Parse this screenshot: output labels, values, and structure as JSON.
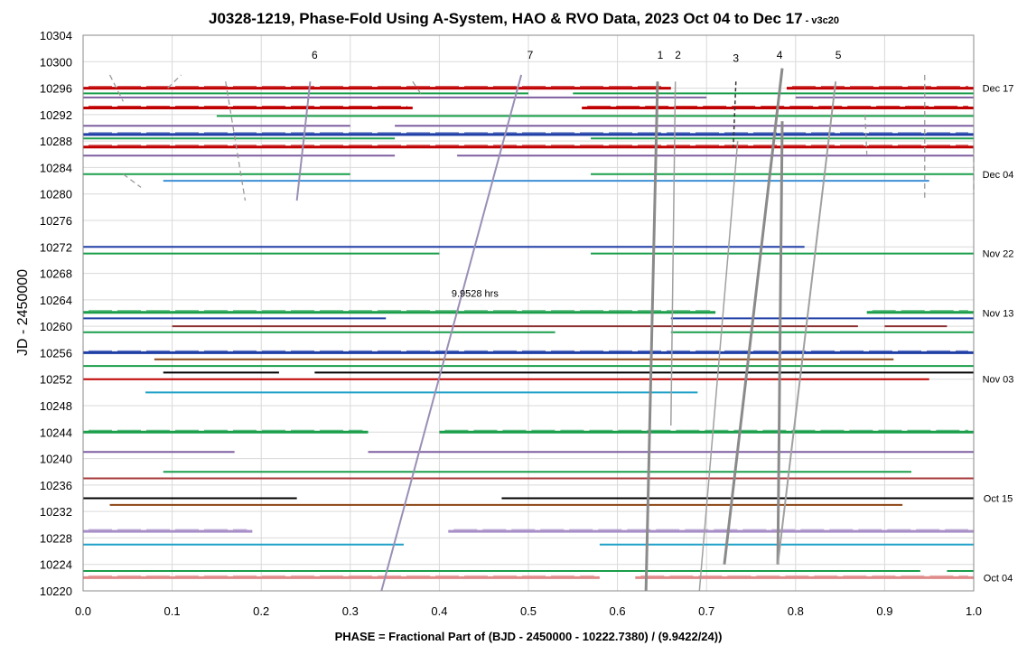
{
  "chart_data": {
    "type": "scatter",
    "title": "J0328-1219, Phase-Fold Using A-System, HAO & RVO Data, 2023 Oct 04 to Dec 17",
    "subtitle": " - v3c20",
    "xlabel": "PHASE = Fractional Part of (BJD - 2450000 - 10222.7380) / (9.9422/24))",
    "ylabel": "JD - 2450000",
    "xlim": [
      0,
      1
    ],
    "ylim": [
      10220,
      10304
    ],
    "xticks": [
      "0.0",
      "0.1",
      "0.2",
      "0.3",
      "0.4",
      "0.5",
      "0.6",
      "0.7",
      "0.8",
      "0.9",
      "1.0"
    ],
    "yticks": [
      "10220",
      "10224",
      "10228",
      "10232",
      "10236",
      "10240",
      "10244",
      "10248",
      "10252",
      "10256",
      "10260",
      "10264",
      "10268",
      "10272",
      "10276",
      "10280",
      "10284",
      "10288",
      "10292",
      "10296",
      "10300",
      "10304"
    ],
    "grid": true,
    "date_labels": [
      {
        "label": "Dec 17",
        "y": 10296
      },
      {
        "label": "Dec 04",
        "y": 10283
      },
      {
        "label": "Nov 22",
        "y": 10271
      },
      {
        "label": "Nov 13",
        "y": 10262
      },
      {
        "label": "Nov 03",
        "y": 10252
      },
      {
        "label": "Oct 15",
        "y": 10234
      },
      {
        "label": "Oct 04",
        "y": 10222
      }
    ],
    "period_label": {
      "text": "9.9528 hrs",
      "x": 0.44,
      "y": 10265
    },
    "drift_lines": [
      {
        "label": "1",
        "x1": 0.645,
        "y1": 10297,
        "x2": 0.632,
        "y2": 10220,
        "color": "#8a8a8a",
        "width": 3,
        "dash": false
      },
      {
        "label": "2",
        "x1": 0.665,
        "y1": 10297,
        "x2": 0.66,
        "y2": 10245,
        "color": "#a0a0a0",
        "width": 1.5,
        "dash": false
      },
      {
        "label": "3",
        "x1": 0.733,
        "y1": 10297,
        "x2": 0.73,
        "y2": 10287,
        "color": "#333333",
        "width": 1.5,
        "dash": true
      },
      {
        "label": "3b",
        "x1": 0.735,
        "y1": 10288,
        "x2": 0.692,
        "y2": 10220,
        "color": "#a0a0a0",
        "width": 1.5,
        "dash": false
      },
      {
        "label": "4",
        "x1": 0.785,
        "y1": 10299,
        "x2": 0.72,
        "y2": 10224,
        "color": "#8a8a8a",
        "width": 3,
        "dash": false
      },
      {
        "label": "4b",
        "x1": 0.785,
        "y1": 10291,
        "x2": 0.78,
        "y2": 10224,
        "color": "#8a8a8a",
        "width": 3,
        "dash": false
      },
      {
        "label": "5",
        "x1": 0.845,
        "y1": 10297,
        "x2": 0.78,
        "y2": 10224,
        "color": "#a0a0a0",
        "width": 2,
        "dash": false
      },
      {
        "label": "6",
        "x1": 0.255,
        "y1": 10297,
        "x2": 0.24,
        "y2": 10279,
        "color": "#9a8fb5",
        "width": 2,
        "dash": false
      },
      {
        "label": "7",
        "x1": 0.492,
        "y1": 10298,
        "x2": 0.335,
        "y2": 10220,
        "color": "#9a8fb5",
        "width": 2,
        "dash": false
      }
    ],
    "dashed_segments": [
      {
        "x1": 0.03,
        "y1": 10298,
        "x2": 0.045,
        "y2": 10294
      },
      {
        "x1": 0.045,
        "y1": 10283,
        "x2": 0.065,
        "y2": 10281
      },
      {
        "x1": 0.095,
        "y1": 10296,
        "x2": 0.11,
        "y2": 10298
      },
      {
        "x1": 0.16,
        "y1": 10297,
        "x2": 0.182,
        "y2": 10279
      },
      {
        "x1": 0.37,
        "y1": 10297,
        "x2": 0.38,
        "y2": 10295
      },
      {
        "x1": 0.878,
        "y1": 10292,
        "x2": 0.88,
        "y2": 10286
      },
      {
        "x1": 0.945,
        "y1": 10298,
        "x2": 0.945,
        "y2": 10279
      },
      {
        "x1": 1.0,
        "y1": 10287,
        "x2": 1.0,
        "y2": 10280
      }
    ],
    "line_labels": [
      {
        "text": "1",
        "x": 0.648,
        "y": 10301
      },
      {
        "text": "2",
        "x": 0.668,
        "y": 10301
      },
      {
        "text": "3",
        "x": 0.733,
        "y": 10300.5
      },
      {
        "text": "4",
        "x": 0.782,
        "y": 10301
      },
      {
        "text": "5",
        "x": 0.848,
        "y": 10301
      },
      {
        "text": "6",
        "x": 0.26,
        "y": 10301
      },
      {
        "text": "7",
        "x": 0.502,
        "y": 10301
      }
    ],
    "series": [
      {
        "jd": 10296.0,
        "color": "#c00000",
        "segments": [
          [
            0.0,
            0.66
          ],
          [
            0.79,
            1.0
          ]
        ],
        "thick": true
      },
      {
        "jd": 10295.2,
        "color": "#1a9e4a",
        "segments": [
          [
            0.0,
            0.5
          ],
          [
            0.55,
            1.0
          ]
        ],
        "thick": false
      },
      {
        "jd": 10294.6,
        "color": "#7f5fa0",
        "segments": [
          [
            0.0,
            0.7
          ],
          [
            0.8,
            1.0
          ]
        ],
        "thick": false
      },
      {
        "jd": 10293.0,
        "color": "#c00000",
        "segments": [
          [
            0.0,
            0.37
          ],
          [
            0.56,
            1.0
          ]
        ],
        "thick": true
      },
      {
        "jd": 10291.8,
        "color": "#1a9e4a",
        "segments": [
          [
            0.15,
            1.0
          ]
        ],
        "thick": false
      },
      {
        "jd": 10290.3,
        "color": "#7f5fa0",
        "segments": [
          [
            0.0,
            0.3
          ],
          [
            0.35,
            1.0
          ]
        ],
        "thick": false
      },
      {
        "jd": 10289.0,
        "color": "#1f3fa6",
        "segments": [
          [
            0.0,
            1.0
          ]
        ],
        "thick": true
      },
      {
        "jd": 10288.4,
        "color": "#1a9e4a",
        "segments": [
          [
            0.0,
            0.35
          ],
          [
            0.57,
            1.0
          ]
        ],
        "thick": false
      },
      {
        "jd": 10287.1,
        "color": "#c00000",
        "segments": [
          [
            0.0,
            1.0
          ]
        ],
        "thick": true
      },
      {
        "jd": 10285.8,
        "color": "#7f5fa0",
        "segments": [
          [
            0.0,
            0.35
          ],
          [
            0.42,
            1.0
          ]
        ],
        "thick": false
      },
      {
        "jd": 10283.0,
        "color": "#1a9e4a",
        "segments": [
          [
            0.0,
            0.3
          ],
          [
            0.57,
            1.0
          ]
        ],
        "thick": false
      },
      {
        "jd": 10282.0,
        "color": "#3c8fd6",
        "segments": [
          [
            0.09,
            0.95
          ]
        ],
        "thick": false
      },
      {
        "jd": 10272.0,
        "color": "#1f3fa6",
        "segments": [
          [
            0.0,
            0.81
          ]
        ],
        "thick": false
      },
      {
        "jd": 10271.0,
        "color": "#1a9e4a",
        "segments": [
          [
            0.0,
            0.4
          ],
          [
            0.57,
            1.0
          ]
        ],
        "thick": false
      },
      {
        "jd": 10262.1,
        "color": "#1a9e4a",
        "segments": [
          [
            0.0,
            0.71
          ],
          [
            0.88,
            1.0
          ]
        ],
        "thick": true
      },
      {
        "jd": 10261.2,
        "color": "#1f3fa6",
        "segments": [
          [
            0.0,
            0.34
          ],
          [
            0.66,
            1.0
          ]
        ],
        "thick": false
      },
      {
        "jd": 10260.0,
        "color": "#8b2f2f",
        "segments": [
          [
            0.1,
            0.87
          ],
          [
            0.9,
            0.97
          ]
        ],
        "thick": false
      },
      {
        "jd": 10259.1,
        "color": "#1a9e4a",
        "segments": [
          [
            0.0,
            0.53
          ],
          [
            0.66,
            1.0
          ]
        ],
        "thick": false
      },
      {
        "jd": 10256.0,
        "color": "#1f3fa6",
        "segments": [
          [
            0.0,
            1.0
          ]
        ],
        "thick": true
      },
      {
        "jd": 10255.0,
        "color": "#8b4513",
        "segments": [
          [
            0.08,
            0.91
          ]
        ],
        "thick": false
      },
      {
        "jd": 10254.0,
        "color": "#1a9e4a",
        "segments": [
          [
            0.0,
            1.0
          ]
        ],
        "thick": false
      },
      {
        "jd": 10253.0,
        "color": "#000000",
        "segments": [
          [
            0.09,
            0.22
          ],
          [
            0.26,
            1.0
          ]
        ],
        "thick": false
      },
      {
        "jd": 10252.0,
        "color": "#c00000",
        "segments": [
          [
            0.0,
            0.95
          ]
        ],
        "thick": false
      },
      {
        "jd": 10250.0,
        "color": "#1fa0c8",
        "segments": [
          [
            0.07,
            0.69
          ]
        ],
        "thick": false
      },
      {
        "jd": 10244.0,
        "color": "#1a9e4a",
        "segments": [
          [
            0.0,
            0.32
          ],
          [
            0.4,
            1.0
          ]
        ],
        "thick": true
      },
      {
        "jd": 10241.0,
        "color": "#7f5fa0",
        "segments": [
          [
            0.0,
            0.17
          ],
          [
            0.32,
            1.0
          ]
        ],
        "thick": false
      },
      {
        "jd": 10238.0,
        "color": "#1a9e4a",
        "segments": [
          [
            0.09,
            0.93
          ]
        ],
        "thick": false
      },
      {
        "jd": 10237.0,
        "color": "#a83a3a",
        "segments": [
          [
            0.0,
            1.0
          ]
        ],
        "thick": false
      },
      {
        "jd": 10234.0,
        "color": "#000000",
        "segments": [
          [
            0.0,
            0.24
          ],
          [
            0.47,
            1.0
          ]
        ],
        "thick": false
      },
      {
        "jd": 10233.0,
        "color": "#8b4513",
        "segments": [
          [
            0.03,
            0.92
          ]
        ],
        "thick": false
      },
      {
        "jd": 10229.0,
        "color": "#a98fc8",
        "segments": [
          [
            0.0,
            0.19
          ],
          [
            0.41,
            1.0
          ]
        ],
        "thick": true
      },
      {
        "jd": 10227.0,
        "color": "#1fa0c8",
        "segments": [
          [
            0.0,
            0.36
          ],
          [
            0.58,
            1.0
          ]
        ],
        "thick": false
      },
      {
        "jd": 10223.0,
        "color": "#1a9e4a",
        "segments": [
          [
            0.0,
            0.94
          ],
          [
            0.97,
            1.0
          ]
        ],
        "thick": false
      },
      {
        "jd": 10222.0,
        "color": "#e08a8a",
        "segments": [
          [
            0.0,
            0.58
          ],
          [
            0.62,
            1.0
          ]
        ],
        "thick": true
      }
    ]
  }
}
